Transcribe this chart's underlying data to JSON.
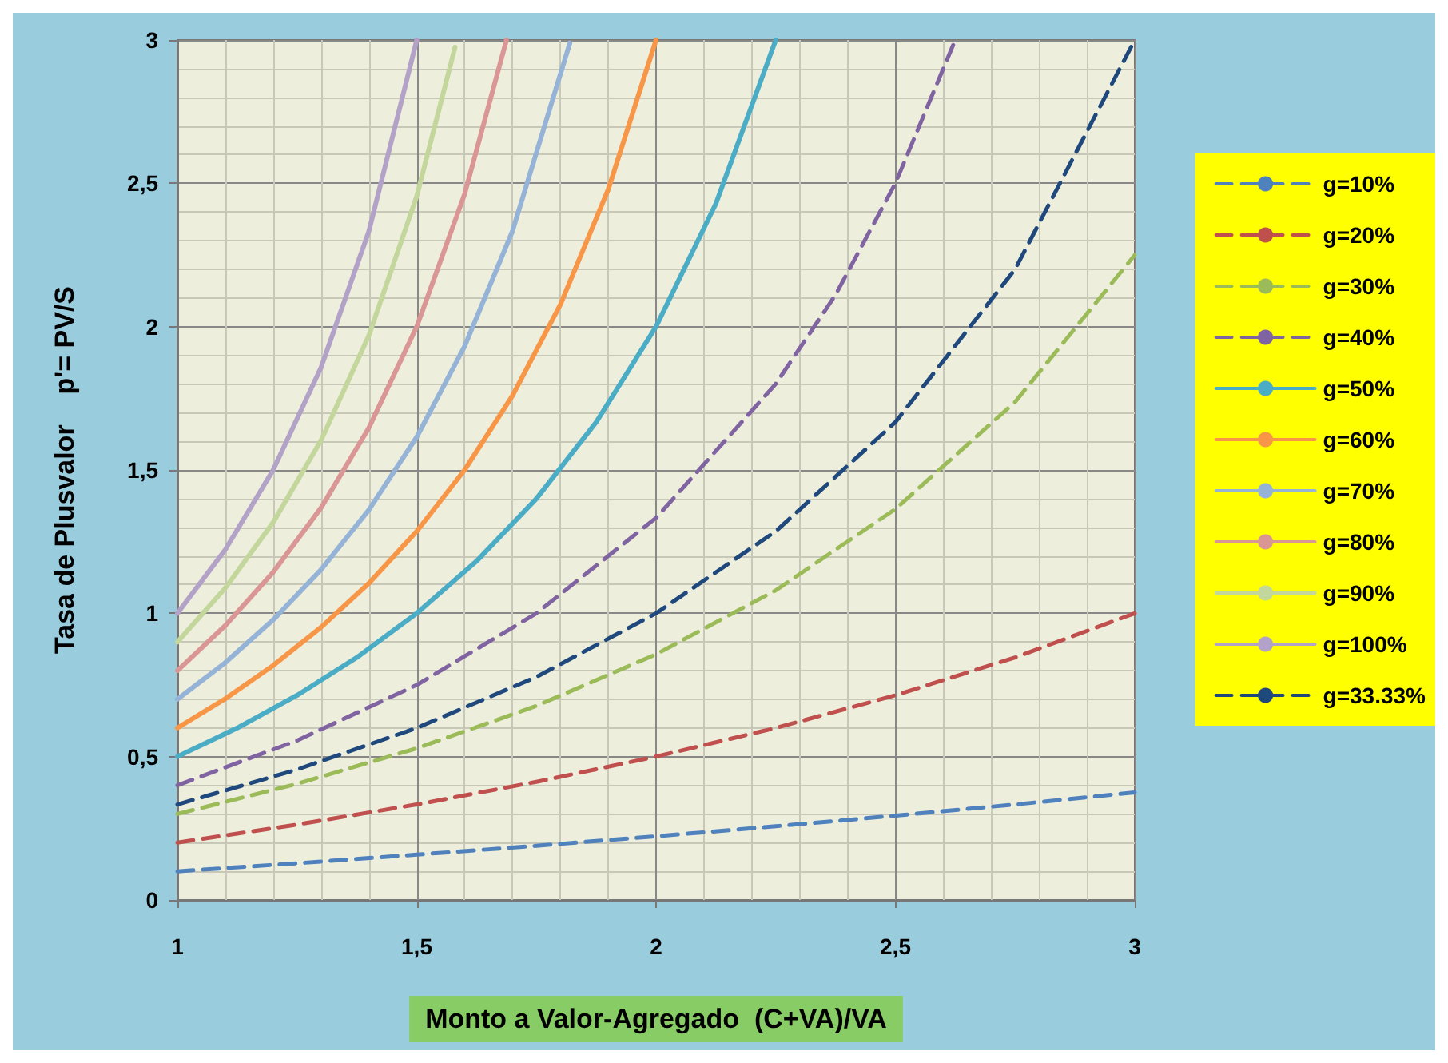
{
  "chart_data": {
    "type": "line",
    "xlabel": "Monto a Valor-Agregado  (C+VA)/VA",
    "ylabel": "Tasa de Plusvalor    p'= PV/S",
    "xlim": [
      1,
      3
    ],
    "xticks": [
      1,
      {
        "value": 1.5,
        "label": "1,5"
      },
      2,
      {
        "value": 2.5,
        "label": "2,5"
      },
      3
    ],
    "ylim": [
      0,
      3
    ],
    "yticks": [
      0,
      {
        "value": 0.5,
        "label": "0,5"
      },
      1,
      {
        "value": 1.5,
        "label": "1,5"
      },
      2,
      {
        "value": 2.5,
        "label": "2,5"
      },
      3
    ],
    "grid": true,
    "legend": "right",
    "marker": "none",
    "series": [
      {
        "name": "g=10%",
        "color": "#4f81bd",
        "line_style": "dashed",
        "x": [
          1,
          1.25,
          1.5,
          1.75,
          2,
          2.25,
          2.5,
          2.75,
          3
        ],
        "values": [
          0.1,
          0.128,
          0.158,
          0.189,
          0.222,
          0.257,
          0.294,
          0.333,
          0.375
        ]
      },
      {
        "name": "g=20%",
        "color": "#c0504d",
        "line_style": "dashed",
        "x": [
          1,
          1.25,
          1.5,
          1.75,
          2,
          2.25,
          2.5,
          2.75,
          3
        ],
        "values": [
          0.2,
          0.263,
          0.333,
          0.412,
          0.5,
          0.6,
          0.714,
          0.846,
          1
        ]
      },
      {
        "name": "g=30%",
        "color": "#9bbb59",
        "line_style": "dashed",
        "x": [
          1,
          1.25,
          1.5,
          1.75,
          2,
          2.25,
          2.5,
          2.75,
          3
        ],
        "values": [
          0.3,
          0.405,
          0.529,
          0.677,
          0.857,
          1.08,
          1.364,
          1.737,
          2.25
        ]
      },
      {
        "name": "g=40%",
        "color": "#8064a2",
        "line_style": "dashed",
        "x": [
          1,
          1.25,
          1.5,
          1.75,
          2,
          2.25,
          2.375,
          2.5,
          2.625
        ],
        "values": [
          0.4,
          0.556,
          0.75,
          1,
          1.333,
          1.8,
          2.111,
          2.5,
          3
        ]
      },
      {
        "name": "g=50%",
        "color": "#4bacc6",
        "line_style": "solid",
        "x": [
          1,
          1.125,
          1.25,
          1.375,
          1.5,
          1.625,
          1.75,
          1.875,
          2,
          2.125,
          2.25
        ],
        "values": [
          0.5,
          0.6,
          0.714,
          0.846,
          1,
          1.182,
          1.4,
          1.667,
          2,
          2.429,
          3
        ]
      },
      {
        "name": "g=60%",
        "color": "#f79646",
        "line_style": "solid",
        "x": [
          1,
          1.1,
          1.2,
          1.3,
          1.4,
          1.5,
          1.6,
          1.7,
          1.8,
          1.9,
          2
        ],
        "values": [
          0.6,
          0.702,
          0.818,
          0.951,
          1.105,
          1.286,
          1.5,
          1.759,
          2.077,
          2.478,
          3
        ]
      },
      {
        "name": "g=70%",
        "color": "#95b3d7",
        "line_style": "solid",
        "x": [
          1,
          1.1,
          1.2,
          1.3,
          1.4,
          1.5,
          1.6,
          1.7,
          1.82
        ],
        "values": [
          0.7,
          0.828,
          0.977,
          1.152,
          1.361,
          1.615,
          1.931,
          2.333,
          2.99
        ]
      },
      {
        "name": "g=80%",
        "color": "#d99694",
        "line_style": "solid",
        "x": [
          1,
          1.1,
          1.2,
          1.3,
          1.4,
          1.5,
          1.6,
          1.6875
        ],
        "values": [
          0.8,
          0.957,
          1.143,
          1.368,
          1.647,
          2,
          2.462,
          3
        ]
      },
      {
        "name": "g=90%",
        "color": "#c3d69b",
        "line_style": "solid",
        "x": [
          1,
          1.1,
          1.2,
          1.3,
          1.4,
          1.5,
          1.58
        ],
        "values": [
          0.9,
          1.088,
          1.317,
          1.603,
          1.969,
          2.455,
          2.975
        ]
      },
      {
        "name": "g=100%",
        "color": "#b3a2c7",
        "line_style": "solid",
        "x": [
          1,
          1.1,
          1.2,
          1.3,
          1.4,
          1.5
        ],
        "values": [
          1,
          1.222,
          1.5,
          1.857,
          2.333,
          3
        ]
      },
      {
        "name": "g=33.33%",
        "color": "#1f497d",
        "line_style": "dashed",
        "x": [
          1,
          1.25,
          1.5,
          1.75,
          2,
          2.25,
          2.5,
          2.75,
          3
        ],
        "values": [
          0.333,
          0.455,
          0.6,
          0.778,
          1,
          1.286,
          1.667,
          2.2,
          3
        ]
      }
    ]
  }
}
